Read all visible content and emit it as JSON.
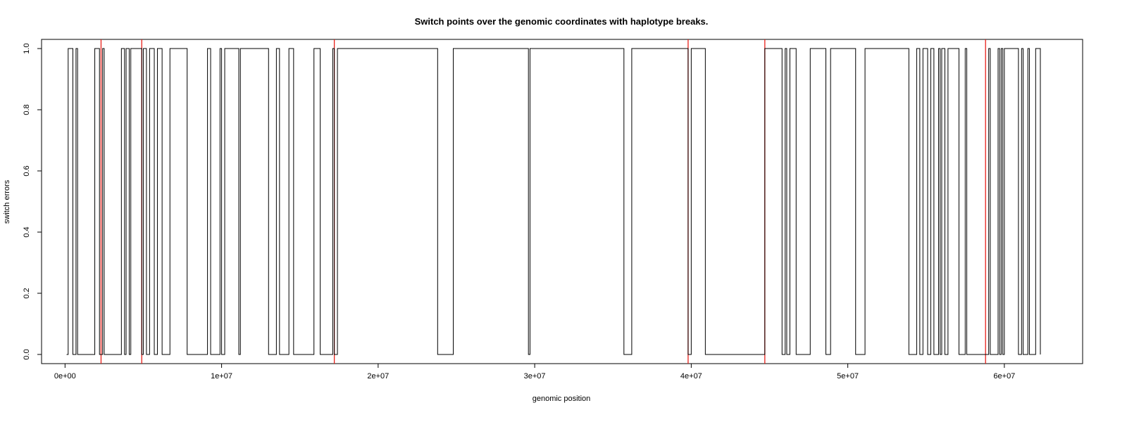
{
  "chart_data": {
    "type": "line",
    "title": "Switch points over the genomic coordinates with haplotype breaks.",
    "xlabel": "genomic position",
    "ylabel": "switch errors",
    "xlim": [
      -1500000,
      65000000
    ],
    "ylim": [
      -0.03,
      1.03
    ],
    "grid": false,
    "legend": "none",
    "x_ticks": [
      {
        "value": 0,
        "label": "0e+00"
      },
      {
        "value": 10000000,
        "label": "1e+07"
      },
      {
        "value": 20000000,
        "label": "2e+07"
      },
      {
        "value": 30000000,
        "label": "3e+07"
      },
      {
        "value": 40000000,
        "label": "4e+07"
      },
      {
        "value": 50000000,
        "label": "5e+07"
      },
      {
        "value": 60000000,
        "label": "6e+07"
      }
    ],
    "y_ticks": [
      {
        "value": 0.0,
        "label": "0.0"
      },
      {
        "value": 0.2,
        "label": "0.2"
      },
      {
        "value": 0.4,
        "label": "0.4"
      },
      {
        "value": 0.6,
        "label": "0.6"
      },
      {
        "value": 0.8,
        "label": "0.8"
      },
      {
        "value": 1.0,
        "label": "1.0"
      }
    ],
    "series": [
      {
        "color": "#000000",
        "step": true,
        "points": [
          [
            100000,
            0
          ],
          [
            200000,
            1
          ],
          [
            500000,
            0
          ],
          [
            700000,
            1
          ],
          [
            800000,
            0
          ],
          [
            1900000,
            1
          ],
          [
            2200000,
            0
          ],
          [
            2400000,
            1
          ],
          [
            2500000,
            0
          ],
          [
            3600000,
            1
          ],
          [
            3800000,
            0
          ],
          [
            3900000,
            1
          ],
          [
            4100000,
            0
          ],
          [
            4200000,
            1
          ],
          [
            4900000,
            0
          ],
          [
            5000000,
            1
          ],
          [
            5200000,
            0
          ],
          [
            5400000,
            1
          ],
          [
            5700000,
            0
          ],
          [
            5900000,
            1
          ],
          [
            6200000,
            0
          ],
          [
            6700000,
            1
          ],
          [
            7800000,
            0
          ],
          [
            9100000,
            1
          ],
          [
            9300000,
            0
          ],
          [
            9900000,
            1
          ],
          [
            10000000,
            0
          ],
          [
            10200000,
            1
          ],
          [
            11100000,
            0
          ],
          [
            11200000,
            1
          ],
          [
            13000000,
            0
          ],
          [
            13500000,
            1
          ],
          [
            13700000,
            0
          ],
          [
            14300000,
            1
          ],
          [
            14600000,
            0
          ],
          [
            15900000,
            1
          ],
          [
            16300000,
            0
          ],
          [
            17100000,
            1
          ],
          [
            17200000,
            0
          ],
          [
            17400000,
            1
          ],
          [
            23800000,
            0
          ],
          [
            24800000,
            1
          ],
          [
            29600000,
            0
          ],
          [
            29700000,
            1
          ],
          [
            35700000,
            0
          ],
          [
            36200000,
            1
          ],
          [
            39800000,
            0
          ],
          [
            40000000,
            1
          ],
          [
            40900000,
            0
          ],
          [
            44700000,
            1
          ],
          [
            45800000,
            0
          ],
          [
            46000000,
            1
          ],
          [
            46100000,
            0
          ],
          [
            46300000,
            1
          ],
          [
            46700000,
            0
          ],
          [
            47600000,
            1
          ],
          [
            48600000,
            0
          ],
          [
            48900000,
            1
          ],
          [
            50500000,
            0
          ],
          [
            51100000,
            1
          ],
          [
            53900000,
            0
          ],
          [
            54400000,
            1
          ],
          [
            54600000,
            0
          ],
          [
            54800000,
            1
          ],
          [
            55100000,
            0
          ],
          [
            55300000,
            1
          ],
          [
            55500000,
            0
          ],
          [
            55800000,
            1
          ],
          [
            55900000,
            0
          ],
          [
            56000000,
            1
          ],
          [
            56200000,
            0
          ],
          [
            56400000,
            1
          ],
          [
            57100000,
            0
          ],
          [
            57500000,
            1
          ],
          [
            57600000,
            0
          ],
          [
            59000000,
            1
          ],
          [
            59100000,
            0
          ],
          [
            59600000,
            1
          ],
          [
            59700000,
            0
          ],
          [
            59800000,
            1
          ],
          [
            59900000,
            0
          ],
          [
            60000000,
            1
          ],
          [
            60900000,
            0
          ],
          [
            61100000,
            1
          ],
          [
            61200000,
            0
          ],
          [
            61500000,
            1
          ],
          [
            61600000,
            0
          ],
          [
            62000000,
            1
          ],
          [
            62300000,
            0
          ]
        ]
      }
    ],
    "haplotype_breaks": {
      "color": "#e8201a",
      "x": [
        2300000,
        4900000,
        17200000,
        39800000,
        44700000,
        58800000
      ]
    }
  }
}
